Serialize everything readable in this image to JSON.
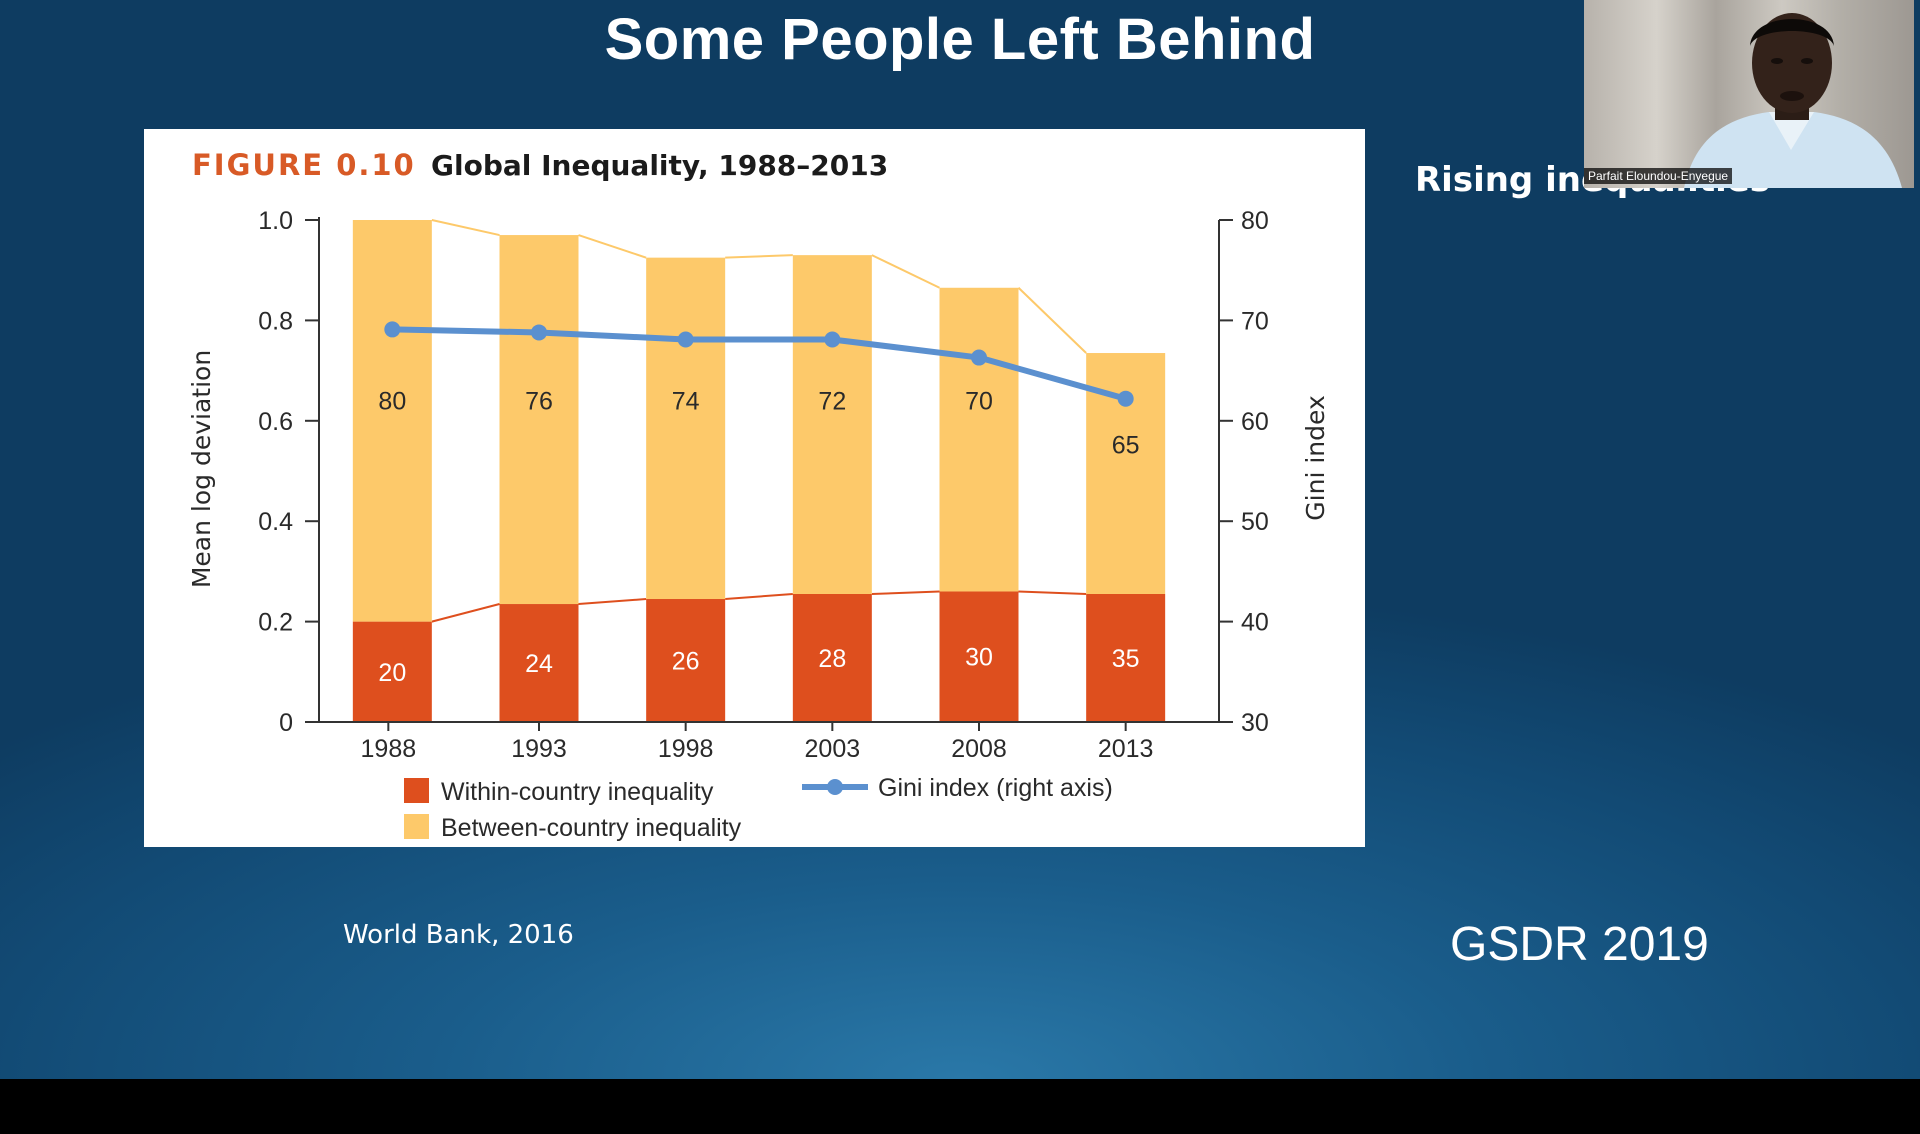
{
  "slide": {
    "title": "Some People Left Behind",
    "source": "World Bank, 2016",
    "side_note": "Rising inequalities",
    "corner_tag": "GSDR 2019"
  },
  "video": {
    "participant_name": "Parfait Eloundou-Enyegue"
  },
  "figure": {
    "label": "FIGURE 0.10",
    "title": "Global Inequality, 1988–2013"
  },
  "colors": {
    "within": "#de4f1e",
    "between": "#fdc96a",
    "gini_line": "#5b90cf",
    "slide_bg": "#1a5d8b"
  },
  "chart_data": {
    "type": "bar",
    "stacked": true,
    "categories": [
      "1988",
      "1993",
      "1998",
      "2003",
      "2008",
      "2013"
    ],
    "series": [
      {
        "name": "Within-country inequality",
        "values": [
          0.2,
          0.235,
          0.245,
          0.255,
          0.26,
          0.255
        ],
        "labels": [
          "20",
          "24",
          "26",
          "28",
          "30",
          "35"
        ]
      },
      {
        "name": "Between-country inequality",
        "values": [
          0.8,
          0.735,
          0.68,
          0.675,
          0.605,
          0.48
        ],
        "labels": [
          "80",
          "76",
          "74",
          "72",
          "70",
          "65"
        ]
      }
    ],
    "line_series": {
      "name": "Gini index (right axis)",
      "axis": "right",
      "values": [
        69.1,
        68.8,
        68.1,
        68.1,
        66.3,
        62.2
      ]
    },
    "ylabel": "Mean log deviation",
    "ylim": [
      0,
      1.0
    ],
    "yticks": [
      "0",
      "0.2",
      "0.4",
      "0.6",
      "0.8",
      "1.0"
    ],
    "y2label": "Gini index",
    "y2lim": [
      30,
      80
    ],
    "y2ticks": [
      "30",
      "40",
      "50",
      "60",
      "70",
      "80"
    ],
    "grid": false,
    "legend_position": "bottom"
  }
}
